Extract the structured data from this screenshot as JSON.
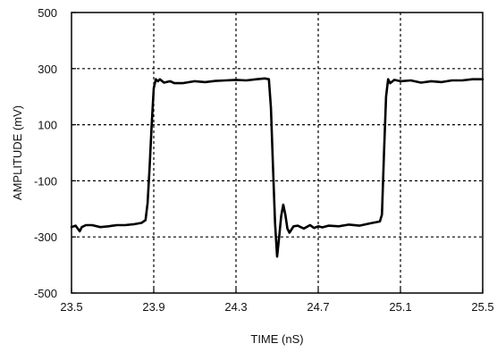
{
  "chart_data": {
    "type": "line",
    "title": "",
    "xlabel": "TIME (nS)",
    "ylabel": "AMPLITUDE (mV)",
    "xlim": [
      23.5,
      25.5
    ],
    "ylim": [
      -500,
      500
    ],
    "x_ticks": [
      "23.5",
      "23.9",
      "24.3",
      "24.7",
      "25.1",
      "25.5"
    ],
    "y_ticks": [
      "500",
      "300",
      "100",
      "-100",
      "-300",
      "-500"
    ],
    "grid": true,
    "legend": "none",
    "series": [
      {
        "color": "#000000",
        "x": [
          23.5,
          23.52,
          23.54,
          23.55,
          23.57,
          23.6,
          23.64,
          23.68,
          23.72,
          23.76,
          23.8,
          23.84,
          23.86,
          23.87,
          23.88,
          23.89,
          23.9,
          23.91,
          23.92,
          23.93,
          23.95,
          23.98,
          24.0,
          24.04,
          24.1,
          24.15,
          24.2,
          24.25,
          24.3,
          24.35,
          24.4,
          24.44,
          24.46,
          24.47,
          24.48,
          24.49,
          24.5,
          24.51,
          24.52,
          24.53,
          24.54,
          24.55,
          24.56,
          24.58,
          24.6,
          24.63,
          24.66,
          24.68,
          24.7,
          24.72,
          24.75,
          24.8,
          24.85,
          24.9,
          24.95,
          25.0,
          25.01,
          25.02,
          25.03,
          25.04,
          25.05,
          25.07,
          25.1,
          25.15,
          25.2,
          25.25,
          25.3,
          25.35,
          25.4,
          25.45,
          25.5
        ],
        "y": [
          -265,
          -260,
          -280,
          -265,
          -258,
          -258,
          -265,
          -262,
          -258,
          -258,
          -255,
          -250,
          -240,
          -180,
          -50,
          100,
          230,
          262,
          255,
          262,
          250,
          255,
          248,
          248,
          255,
          252,
          256,
          258,
          260,
          258,
          262,
          265,
          262,
          160,
          -50,
          -250,
          -370,
          -300,
          -225,
          -185,
          -220,
          -270,
          -285,
          -262,
          -260,
          -270,
          -258,
          -268,
          -262,
          -266,
          -260,
          -262,
          -256,
          -260,
          -252,
          -245,
          -220,
          0,
          200,
          262,
          248,
          260,
          255,
          258,
          250,
          255,
          252,
          258,
          258,
          262,
          262
        ]
      }
    ]
  }
}
